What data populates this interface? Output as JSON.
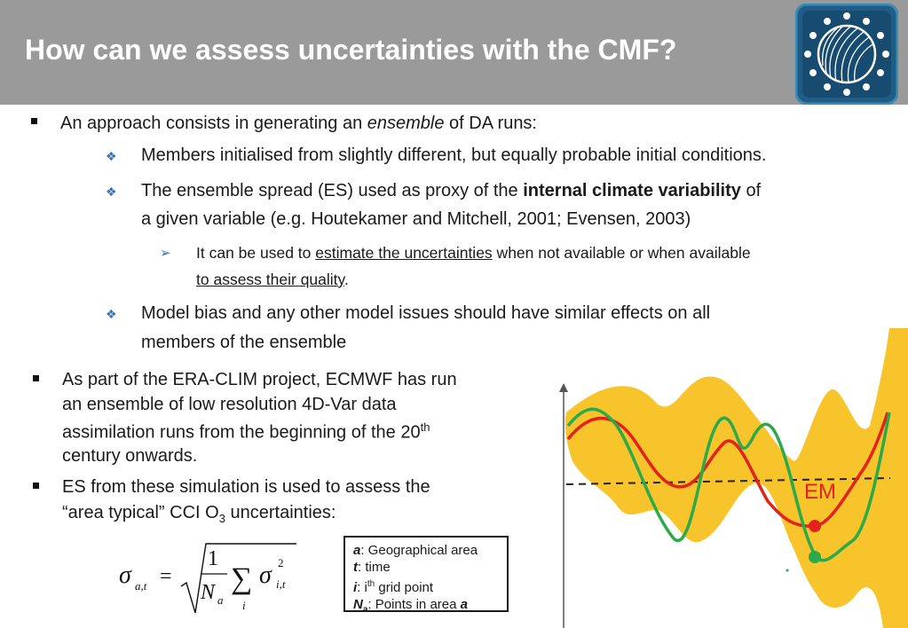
{
  "title": "How can we assess uncertainties with the CMF?",
  "logo_icon": "globe-stars-logo-icon",
  "bullets": {
    "b1": {
      "pre": "An approach consists in generating an ",
      "em": "ensemble",
      "post": " of DA runs:"
    },
    "b1a": "Members initialised from slightly different, but equally probable initial conditions.",
    "b1b": {
      "pre": "The ensemble spread (ES) used as proxy of the ",
      "bold": "internal climate variability",
      "post": " of",
      "line2": "a given variable (e.g. Houtekamer and Mitchell, 2001; Evensen, 2003)"
    },
    "b1b_sub": {
      "pre": "It can be used to ",
      "u1": "estimate the uncertainties",
      "post": " when not available or when available",
      "u2": "to assess their quality",
      "end": "."
    },
    "b1c": {
      "line1": "Model bias and any other model issues should have similar effects on all",
      "line2": "members of the ensemble"
    },
    "b2": {
      "line1": "As part of the ERA-CLIM project, ECMWF has run",
      "line2": "an ensemble of low resolution 4D-Var data",
      "line3_pre": "assimilation runs from the beginning of the 20",
      "line3_sup": "th",
      "line4": "century onwards."
    },
    "b3": {
      "line1": "ES from these simulation is used to assess the",
      "line2_pre": "“area typical” CCI O",
      "line2_sub": "3",
      "line2_post": " uncertainties:"
    }
  },
  "legend": [
    {
      "sym": "a",
      "text": ": Geographical area"
    },
    {
      "sym": "t",
      "text": ": time"
    },
    {
      "sym": "i",
      "text": ": i",
      "sup": "th",
      "post": " grid point"
    },
    {
      "sym": "N",
      "symsub": "a",
      "text": ": Points in area ",
      "tail": "a"
    }
  ],
  "formula": {
    "sigma": "σ",
    "sub_at": "a,t",
    "eq": "=",
    "one": "1",
    "N": "N",
    "Nsub": "a",
    "sum": "∑",
    "sum_sub": "i",
    "sup2": "2",
    "sub_it": "i,t"
  },
  "chart_data": {
    "type": "line",
    "annotation": "EM",
    "colors": {
      "spread": "#f7c42b",
      "em": "#e32219",
      "member": "#2ca94a",
      "baseline": "#222222"
    }
  }
}
